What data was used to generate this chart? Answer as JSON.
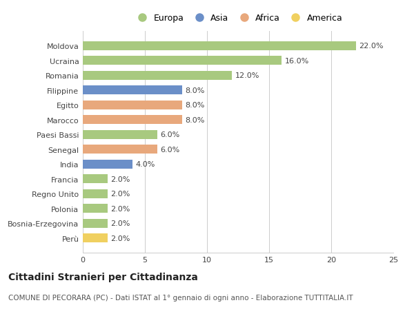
{
  "countries": [
    "Moldova",
    "Ucraina",
    "Romania",
    "Filippine",
    "Egitto",
    "Marocco",
    "Paesi Bassi",
    "Senegal",
    "India",
    "Francia",
    "Regno Unito",
    "Polonia",
    "Bosnia-Erzegovina",
    "Perù"
  ],
  "values": [
    22.0,
    16.0,
    12.0,
    8.0,
    8.0,
    8.0,
    6.0,
    6.0,
    4.0,
    2.0,
    2.0,
    2.0,
    2.0,
    2.0
  ],
  "continents": [
    "Europa",
    "Europa",
    "Europa",
    "Asia",
    "Africa",
    "Africa",
    "Europa",
    "Africa",
    "Asia",
    "Europa",
    "Europa",
    "Europa",
    "Europa",
    "America"
  ],
  "colors": {
    "Europa": "#a8c97f",
    "Asia": "#6b8fc8",
    "Africa": "#e8a87c",
    "America": "#f0d060"
  },
  "legend_order": [
    "Europa",
    "Asia",
    "Africa",
    "America"
  ],
  "title": "Cittadini Stranieri per Cittadinanza",
  "subtitle": "COMUNE DI PECORARA (PC) - Dati ISTAT al 1° gennaio di ogni anno - Elaborazione TUTTITALIA.IT",
  "xlim": [
    0,
    25
  ],
  "xticks": [
    0,
    5,
    10,
    15,
    20,
    25
  ],
  "background_color": "#ffffff",
  "grid_color": "#cccccc",
  "bar_height": 0.6,
  "label_fontsize": 8,
  "ytick_fontsize": 8,
  "xtick_fontsize": 8,
  "legend_fontsize": 9,
  "title_fontsize": 10,
  "subtitle_fontsize": 7.5
}
